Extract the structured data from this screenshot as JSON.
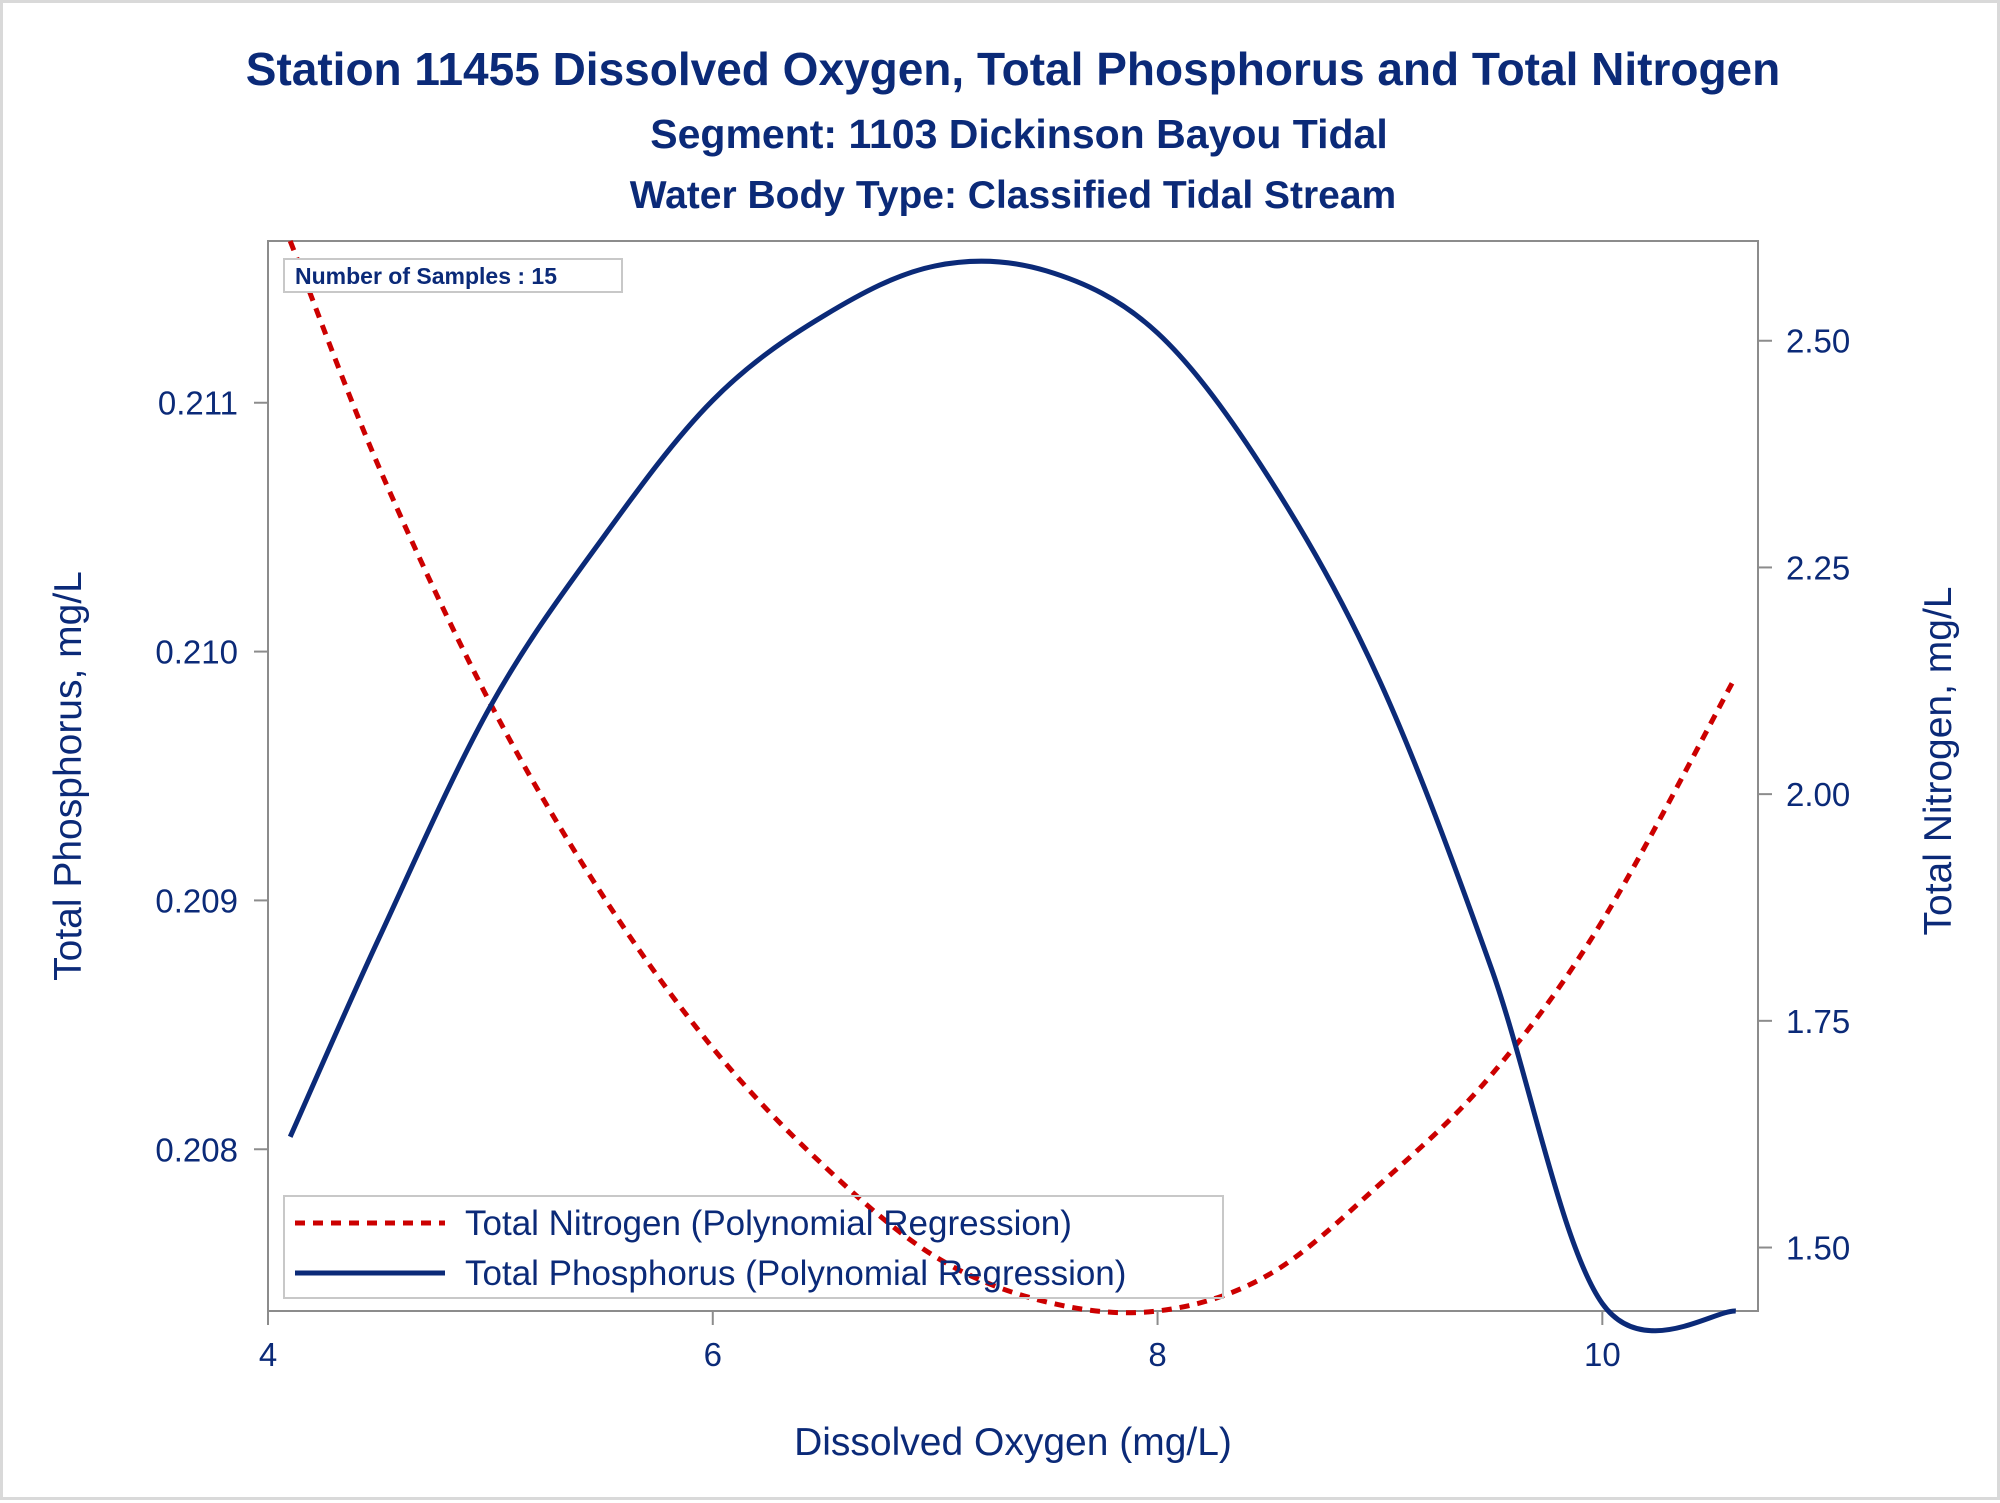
{
  "chart_data": {
    "type": "line",
    "title": "Station 11455  Dissolved Oxygen, Total Phosphorus and Total Nitrogen",
    "subtitle": "Segment: 1103  Dickinson Bayou Tidal",
    "subtitle2": "Water Body Type: Classified Tidal Stream",
    "xlabel": "Dissolved Oxygen (mg/L)",
    "ylabel_left": "Total Phosphorus, mg/L",
    "ylabel_right": "Total Nitrogen, mg/L",
    "xlim": [
      4.0,
      10.7
    ],
    "ylim_left": [
      0.20735,
      0.21165
    ],
    "ylim_right": [
      1.43,
      2.61
    ],
    "x_ticks": [
      "4",
      "6",
      "8",
      "10"
    ],
    "y_left_ticks": [
      "0.208",
      "0.209",
      "0.210",
      "0.211"
    ],
    "y_right_ticks": [
      "1.50",
      "1.75",
      "2.00",
      "2.25",
      "2.50"
    ],
    "inset_note": "Number of Samples : 15",
    "legend_position": "bottom-left",
    "series": [
      {
        "name": "Total Nitrogen (Polynomial Regression)",
        "axis": "right",
        "color": "#cc0000",
        "style": "dashed",
        "x": [
          4.1,
          4.5,
          5.0,
          5.5,
          6.0,
          6.5,
          7.0,
          7.5,
          8.0,
          8.5,
          9.0,
          9.5,
          10.0,
          10.6
        ],
        "y": [
          2.61,
          2.36,
          2.1,
          1.89,
          1.72,
          1.59,
          1.49,
          1.44,
          1.43,
          1.47,
          1.57,
          1.69,
          1.86,
          2.13
        ]
      },
      {
        "name": "Total Phosphorus (Polynomial Regression)",
        "axis": "left",
        "color": "#0b2a78",
        "style": "solid",
        "x": [
          4.1,
          4.5,
          5.0,
          5.5,
          6.0,
          6.5,
          7.0,
          7.5,
          8.0,
          8.5,
          9.0,
          9.5,
          10.0,
          10.6
        ],
        "y": [
          0.20805,
          0.20885,
          0.20978,
          0.21045,
          0.21101,
          0.21135,
          0.21155,
          0.21153,
          0.21128,
          0.2107,
          0.20988,
          0.20873,
          0.20738,
          0.20735
        ]
      }
    ]
  }
}
